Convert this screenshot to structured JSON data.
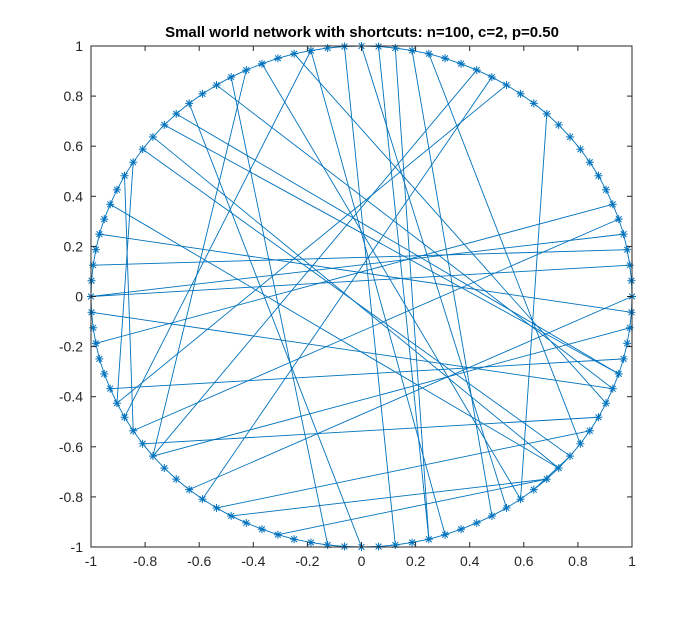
{
  "chart_data": {
    "type": "scatter",
    "title": "Small world network with shortcuts: n=100, c=2, p=0.50",
    "xlabel": "",
    "ylabel": "",
    "xlim": [
      -1,
      1
    ],
    "ylim": [
      -1,
      1
    ],
    "grid": false,
    "legend": "none",
    "color": "#0072BD",
    "marker": "asterisk",
    "xticks": [
      -1,
      -0.8,
      -0.6,
      -0.4,
      -0.2,
      0,
      0.2,
      0.4,
      0.6,
      0.8,
      1
    ],
    "yticks": [
      -1,
      -0.8,
      -0.6,
      -0.4,
      -0.2,
      0,
      0.2,
      0.4,
      0.6,
      0.8,
      1
    ],
    "xtick_labels": [
      "-1",
      "-0.8",
      "-0.6",
      "-0.4",
      "-0.2",
      "0",
      "0.2",
      "0.4",
      "0.6",
      "0.8",
      "1"
    ],
    "ytick_labels": [
      "-1",
      "-0.8",
      "-0.6",
      "-0.4",
      "-0.2",
      "0",
      "0.2",
      "0.4",
      "0.6",
      "0.8",
      "1"
    ],
    "node_count": 100,
    "nodes": {
      "x": [
        1,
        0.998,
        0.992,
        0.982,
        0.969,
        0.951,
        0.929,
        0.904,
        0.876,
        0.844,
        0.809,
        0.771,
        0.729,
        0.685,
        0.637,
        0.588,
        0.536,
        0.482,
        0.426,
        0.368,
        0.309,
        0.249,
        0.187,
        0.125,
        0.063,
        0,
        -0.063,
        -0.125,
        -0.187,
        -0.249,
        -0.309,
        -0.368,
        -0.426,
        -0.482,
        -0.536,
        -0.588,
        -0.637,
        -0.685,
        -0.729,
        -0.771,
        -0.809,
        -0.844,
        -0.876,
        -0.904,
        -0.929,
        -0.951,
        -0.969,
        -0.982,
        -0.992,
        -0.998,
        -1,
        -0.998,
        -0.992,
        -0.982,
        -0.969,
        -0.951,
        -0.929,
        -0.904,
        -0.876,
        -0.844,
        -0.809,
        -0.771,
        -0.729,
        -0.685,
        -0.637,
        -0.588,
        -0.536,
        -0.482,
        -0.426,
        -0.368,
        -0.309,
        -0.249,
        -0.187,
        -0.125,
        -0.063,
        0,
        0.063,
        0.125,
        0.187,
        0.249,
        0.309,
        0.368,
        0.426,
        0.482,
        0.536,
        0.588,
        0.637,
        0.685,
        0.729,
        0.771,
        0.809,
        0.844,
        0.876,
        0.904,
        0.929,
        0.951,
        0.969,
        0.982,
        0.992,
        0.998
      ],
      "y": [
        0,
        0.063,
        0.125,
        0.187,
        0.249,
        0.309,
        0.368,
        0.426,
        0.482,
        0.536,
        0.588,
        0.637,
        0.685,
        0.729,
        0.771,
        0.809,
        0.844,
        0.876,
        0.904,
        0.929,
        0.951,
        0.969,
        0.982,
        0.992,
        0.998,
        1,
        0.998,
        0.992,
        0.982,
        0.969,
        0.951,
        0.929,
        0.904,
        0.876,
        0.844,
        0.809,
        0.771,
        0.729,
        0.685,
        0.637,
        0.588,
        0.536,
        0.482,
        0.426,
        0.368,
        0.309,
        0.249,
        0.187,
        0.125,
        0.063,
        0,
        -0.063,
        -0.125,
        -0.187,
        -0.249,
        -0.309,
        -0.368,
        -0.426,
        -0.482,
        -0.536,
        -0.588,
        -0.637,
        -0.685,
        -0.729,
        -0.771,
        -0.809,
        -0.844,
        -0.876,
        -0.904,
        -0.929,
        -0.951,
        -0.969,
        -0.982,
        -0.992,
        -0.998,
        -1,
        -0.998,
        -0.992,
        -0.982,
        -0.969,
        -0.951,
        -0.929,
        -0.904,
        -0.876,
        -0.844,
        -0.809,
        -0.771,
        -0.729,
        -0.685,
        -0.637,
        -0.588,
        -0.536,
        -0.482,
        -0.426,
        -0.368,
        -0.309,
        -0.249,
        -0.187,
        -0.125,
        -0.063
      ]
    },
    "edges": [
      [
        0,
        1
      ],
      [
        1,
        2
      ],
      [
        2,
        3
      ],
      [
        3,
        4
      ],
      [
        4,
        5
      ],
      [
        5,
        6
      ],
      [
        6,
        7
      ],
      [
        7,
        8
      ],
      [
        8,
        9
      ],
      [
        9,
        10
      ],
      [
        10,
        11
      ],
      [
        11,
        12
      ],
      [
        12,
        13
      ],
      [
        13,
        14
      ],
      [
        14,
        15
      ],
      [
        15,
        16
      ],
      [
        16,
        17
      ],
      [
        17,
        18
      ],
      [
        18,
        19
      ],
      [
        19,
        20
      ],
      [
        20,
        21
      ],
      [
        21,
        22
      ],
      [
        22,
        23
      ],
      [
        23,
        24
      ],
      [
        24,
        25
      ],
      [
        25,
        26
      ],
      [
        26,
        27
      ],
      [
        27,
        28
      ],
      [
        28,
        29
      ],
      [
        29,
        30
      ],
      [
        30,
        31
      ],
      [
        31,
        32
      ],
      [
        32,
        33
      ],
      [
        33,
        34
      ],
      [
        34,
        35
      ],
      [
        35,
        36
      ],
      [
        36,
        37
      ],
      [
        37,
        38
      ],
      [
        38,
        39
      ],
      [
        39,
        40
      ],
      [
        40,
        41
      ],
      [
        41,
        42
      ],
      [
        42,
        43
      ],
      [
        43,
        44
      ],
      [
        44,
        45
      ],
      [
        45,
        46
      ],
      [
        46,
        47
      ],
      [
        47,
        48
      ],
      [
        48,
        49
      ],
      [
        49,
        50
      ],
      [
        50,
        51
      ],
      [
        51,
        52
      ],
      [
        52,
        53
      ],
      [
        53,
        54
      ],
      [
        54,
        55
      ],
      [
        55,
        56
      ],
      [
        56,
        57
      ],
      [
        57,
        58
      ],
      [
        58,
        59
      ],
      [
        59,
        60
      ],
      [
        60,
        61
      ],
      [
        61,
        62
      ],
      [
        62,
        63
      ],
      [
        63,
        64
      ],
      [
        64,
        65
      ],
      [
        65,
        66
      ],
      [
        66,
        67
      ],
      [
        67,
        68
      ],
      [
        68,
        69
      ],
      [
        69,
        70
      ],
      [
        70,
        71
      ],
      [
        71,
        72
      ],
      [
        72,
        73
      ],
      [
        73,
        74
      ],
      [
        74,
        75
      ],
      [
        75,
        76
      ],
      [
        76,
        77
      ],
      [
        77,
        78
      ],
      [
        78,
        79
      ],
      [
        79,
        80
      ],
      [
        80,
        81
      ],
      [
        81,
        82
      ],
      [
        82,
        83
      ],
      [
        83,
        84
      ],
      [
        84,
        85
      ],
      [
        85,
        86
      ],
      [
        86,
        87
      ],
      [
        87,
        88
      ],
      [
        88,
        89
      ],
      [
        89,
        90
      ],
      [
        90,
        91
      ],
      [
        91,
        92
      ],
      [
        92,
        93
      ],
      [
        93,
        94
      ],
      [
        94,
        95
      ],
      [
        95,
        96
      ],
      [
        96,
        97
      ],
      [
        97,
        98
      ],
      [
        98,
        99
      ],
      [
        99,
        0
      ],
      [
        29,
        93
      ],
      [
        0,
        64
      ],
      [
        39,
        88
      ],
      [
        41,
        57
      ],
      [
        44,
        88
      ],
      [
        58,
        28
      ],
      [
        85,
        31
      ],
      [
        17,
        65
      ],
      [
        24,
        79
      ],
      [
        23,
        79
      ],
      [
        25,
        84
      ],
      [
        22,
        83
      ],
      [
        21,
        90
      ],
      [
        61,
        98
      ],
      [
        6,
        53
      ],
      [
        13,
        85
      ],
      [
        33,
        73
      ],
      [
        3,
        48
      ],
      [
        95,
        37
      ],
      [
        34,
        94
      ],
      [
        60,
        92
      ],
      [
        50,
        4
      ],
      [
        70,
        87
      ],
      [
        18,
        61
      ],
      [
        50,
        2
      ],
      [
        51,
        94
      ],
      [
        66,
        91
      ],
      [
        77,
        26
      ],
      [
        75,
        36
      ],
      [
        40,
        89
      ],
      [
        57,
        16
      ],
      [
        99,
        46
      ],
      [
        86,
        89
      ],
      [
        61,
        32
      ],
      [
        67,
        87
      ],
      [
        80,
        28
      ],
      [
        59,
        5
      ],
      [
        38,
        95
      ],
      [
        56,
        96
      ],
      [
        42,
        59
      ]
    ]
  }
}
